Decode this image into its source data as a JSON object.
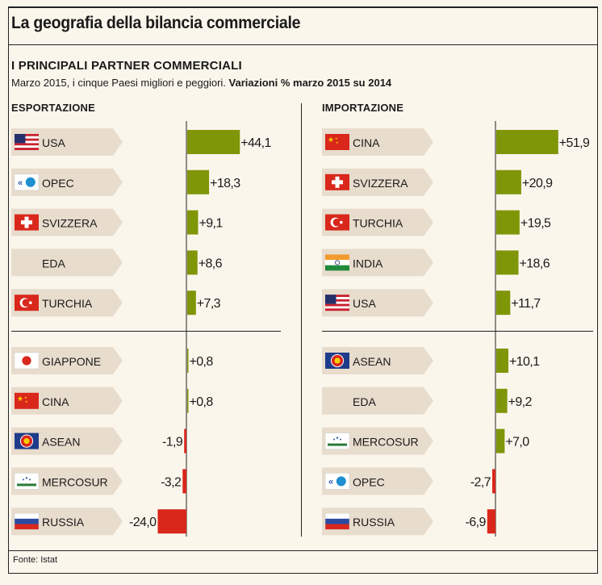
{
  "header": {
    "title": "La geografia della bilancia commerciale",
    "subtitle": "I PRINCIPALI PARTNER COMMERCIALI",
    "description": "Marzo 2015, i cinque Paesi migliori e peggiori.",
    "description_bold": "Variazioni % marzo 2015 su 2014"
  },
  "footer": {
    "source": "Fonte: Istat"
  },
  "colors": {
    "positive": "#7f9609",
    "negative": "#d9271c",
    "label_bg": "#e8dccd",
    "background": "#fbf6ec"
  },
  "chart_data": [
    {
      "type": "bar",
      "orientation": "horizontal",
      "title": "ESPORTAZIONE",
      "categories": [
        "USA",
        "OPEC",
        "SVIZZERA",
        "EDA",
        "TURCHIA",
        "GIAPPONE",
        "CINA",
        "ASEAN",
        "MERCOSUR",
        "RUSSIA"
      ],
      "flags": [
        "usa",
        "opec",
        "svizzera",
        "",
        "turchia",
        "giappone",
        "cina",
        "asean",
        "mercosur",
        "russia"
      ],
      "values": [
        44.1,
        18.3,
        9.1,
        8.6,
        7.3,
        0.8,
        0.8,
        -1.9,
        -3.2,
        -24.0
      ],
      "labels": [
        "+44,1",
        "+18,3",
        "+9,1",
        "+8,6",
        "+7,3",
        "+0,8",
        "+0,8",
        "-1,9",
        "-3,2",
        "-24,0"
      ],
      "groups": [
        "migliori",
        "migliori",
        "migliori",
        "migliori",
        "migliori",
        "peggiori",
        "peggiori",
        "peggiori",
        "peggiori",
        "peggiori"
      ]
    },
    {
      "type": "bar",
      "orientation": "horizontal",
      "title": "IMPORTAZIONE",
      "categories": [
        "CINA",
        "SVIZZERA",
        "TURCHIA",
        "INDIA",
        "USA",
        "ASEAN",
        "EDA",
        "MERCOSUR",
        "OPEC",
        "RUSSIA"
      ],
      "flags": [
        "cina",
        "svizzera",
        "turchia",
        "india",
        "usa",
        "asean",
        "",
        "mercosur",
        "opec",
        "russia"
      ],
      "values": [
        51.9,
        20.9,
        19.5,
        18.6,
        11.7,
        10.1,
        9.2,
        7.0,
        -2.7,
        -6.9
      ],
      "labels": [
        "+51,9",
        "+20,9",
        "+19,5",
        "+18,6",
        "+11,7",
        "+10,1",
        "+9,2",
        "+7,0",
        "-2,7",
        "-6,9"
      ],
      "groups": [
        "migliori",
        "migliori",
        "migliori",
        "migliori",
        "migliori",
        "peggiori",
        "peggiori",
        "peggiori",
        "peggiori",
        "peggiori"
      ]
    }
  ]
}
